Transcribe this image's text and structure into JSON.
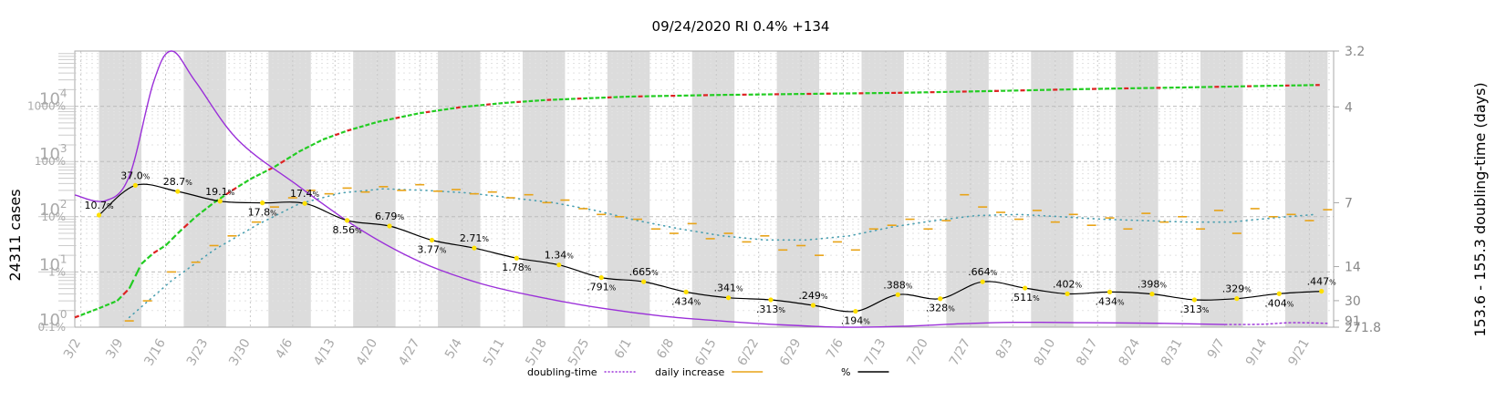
{
  "chart_data": {
    "type": "line",
    "title": "09/24/2020 RI 0.4% +134",
    "ylabel_left": "24311 cases",
    "ylabel_right": "153.6 - 155.3 doubling-time (days)",
    "x_tick_labels": [
      "3/2",
      "3/9",
      "3/16",
      "3/23",
      "3/30",
      "4/6",
      "4/13",
      "4/20",
      "4/27",
      "5/4",
      "5/11",
      "5/18",
      "5/25",
      "6/1",
      "6/8",
      "6/15",
      "6/22",
      "6/29",
      "7/6",
      "7/13",
      "7/20",
      "7/27",
      "8/3",
      "8/10",
      "8/17",
      "8/24",
      "8/31",
      "9/7",
      "9/14",
      "9/21"
    ],
    "x_start_date": "2020-03-01",
    "x_end_date": "2020-09-25",
    "cases_axis": {
      "scale": "log",
      "ylim": [
        1,
        100000
      ],
      "ticks": [
        {
          "base": "10",
          "exp": "0"
        },
        {
          "base": "10",
          "exp": "1"
        },
        {
          "base": "10",
          "exp": "2"
        },
        {
          "base": "10",
          "exp": "3"
        },
        {
          "base": "10",
          "exp": "4"
        }
      ]
    },
    "percent_axis": {
      "scale": "log",
      "ylim": [
        0.1,
        10000
      ],
      "ticks": [
        "0.1%",
        "1%",
        "10%",
        "100%",
        "1000%"
      ]
    },
    "doubling_axis": {
      "scale": "reciprocal",
      "ylim": [
        271.8,
        3.2
      ],
      "ticks": [
        "3.2",
        "4",
        "7",
        "14",
        "30",
        "91",
        "271.8"
      ]
    },
    "weekend_shading": true,
    "grid": true,
    "legend": {
      "position": "bottom",
      "entries": [
        {
          "label": "doubling-time",
          "color": "#9b30d9",
          "style": "dotted"
        },
        {
          "label": "daily increase",
          "color": "#e8a317",
          "style": "solid"
        },
        {
          "label": "%",
          "color": "#000000",
          "style": "solid"
        }
      ]
    },
    "series": [
      {
        "name": "%",
        "color": "#000000",
        "axis": "percent",
        "points": [
          {
            "x": "2020-03-05",
            "y": 10.7,
            "label": "10.7"
          },
          {
            "x": "2020-03-11",
            "y": 37.0,
            "label": "37.0"
          },
          {
            "x": "2020-03-18",
            "y": 28.7,
            "label": "28.7"
          },
          {
            "x": "2020-03-25",
            "y": 19.1,
            "label": "19.1"
          },
          {
            "x": "2020-04-01",
            "y": 17.8,
            "label": "17.8"
          },
          {
            "x": "2020-04-08",
            "y": 17.4,
            "label": "17.4"
          },
          {
            "x": "2020-04-15",
            "y": 8.56,
            "label": "8.56"
          },
          {
            "x": "2020-04-22",
            "y": 6.79,
            "label": "6.79"
          },
          {
            "x": "2020-04-29",
            "y": 3.77,
            "label": "3.77"
          },
          {
            "x": "2020-05-06",
            "y": 2.71,
            "label": "2.71"
          },
          {
            "x": "2020-05-13",
            "y": 1.78,
            "label": "1.78"
          },
          {
            "x": "2020-05-20",
            "y": 1.34,
            "label": "1.34"
          },
          {
            "x": "2020-05-27",
            "y": 0.791,
            "label": ".791"
          },
          {
            "x": "2020-06-03",
            "y": 0.665,
            "label": ".665"
          },
          {
            "x": "2020-06-10",
            "y": 0.434,
            "label": ".434"
          },
          {
            "x": "2020-06-17",
            "y": 0.341,
            "label": ".341"
          },
          {
            "x": "2020-06-24",
            "y": 0.313,
            "label": ".313"
          },
          {
            "x": "2020-07-01",
            "y": 0.249,
            "label": ".249"
          },
          {
            "x": "2020-07-08",
            "y": 0.194,
            "label": ".194"
          },
          {
            "x": "2020-07-15",
            "y": 0.388,
            "label": ".388"
          },
          {
            "x": "2020-07-22",
            "y": 0.328,
            "label": ".328"
          },
          {
            "x": "2020-07-29",
            "y": 0.664,
            "label": ".664"
          },
          {
            "x": "2020-08-05",
            "y": 0.511,
            "label": ".511"
          },
          {
            "x": "2020-08-12",
            "y": 0.402,
            "label": ".402"
          },
          {
            "x": "2020-08-19",
            "y": 0.434,
            "label": ".434"
          },
          {
            "x": "2020-08-26",
            "y": 0.398,
            "label": ".398"
          },
          {
            "x": "2020-09-02",
            "y": 0.313,
            "label": ".313"
          },
          {
            "x": "2020-09-09",
            "y": 0.329,
            "label": ".329"
          },
          {
            "x": "2020-09-16",
            "y": 0.404,
            "label": ".404"
          },
          {
            "x": "2020-09-23",
            "y": 0.447,
            "label": ".447"
          }
        ]
      },
      {
        "name": "cases",
        "color": "#22cc22",
        "color_alt": "#dd2222",
        "axis": "cases",
        "points": [
          {
            "x": "2020-03-01",
            "y": 1.5
          },
          {
            "x": "2020-03-05",
            "y": 2.2
          },
          {
            "x": "2020-03-08",
            "y": 3
          },
          {
            "x": "2020-03-10",
            "y": 5
          },
          {
            "x": "2020-03-12",
            "y": 14
          },
          {
            "x": "2020-03-14",
            "y": 22
          },
          {
            "x": "2020-03-16",
            "y": 30
          },
          {
            "x": "2020-03-18",
            "y": 50
          },
          {
            "x": "2020-03-21",
            "y": 100
          },
          {
            "x": "2020-03-24",
            "y": 180
          },
          {
            "x": "2020-03-27",
            "y": 300
          },
          {
            "x": "2020-03-30",
            "y": 480
          },
          {
            "x": "2020-04-03",
            "y": 800
          },
          {
            "x": "2020-04-07",
            "y": 1500
          },
          {
            "x": "2020-04-11",
            "y": 2500
          },
          {
            "x": "2020-04-15",
            "y": 3600
          },
          {
            "x": "2020-04-20",
            "y": 5200
          },
          {
            "x": "2020-04-27",
            "y": 7500
          },
          {
            "x": "2020-05-04",
            "y": 9700
          },
          {
            "x": "2020-05-11",
            "y": 11500
          },
          {
            "x": "2020-05-18",
            "y": 13000
          },
          {
            "x": "2020-05-25",
            "y": 14000
          },
          {
            "x": "2020-06-01",
            "y": 15000
          },
          {
            "x": "2020-06-15",
            "y": 16000
          },
          {
            "x": "2020-07-01",
            "y": 16800
          },
          {
            "x": "2020-07-15",
            "y": 17500
          },
          {
            "x": "2020-08-01",
            "y": 19000
          },
          {
            "x": "2020-08-15",
            "y": 20500
          },
          {
            "x": "2020-09-01",
            "y": 22000
          },
          {
            "x": "2020-09-15",
            "y": 23500
          },
          {
            "x": "2020-09-23",
            "y": 24311
          }
        ]
      },
      {
        "name": "doubling-time",
        "color": "#9b30d9",
        "axis": "doubling",
        "points": [
          {
            "x": "2020-03-01",
            "y": 6.6
          },
          {
            "x": "2020-03-06",
            "y": 6.9
          },
          {
            "x": "2020-03-10",
            "y": 5.8
          },
          {
            "x": "2020-03-14",
            "y": 3.6
          },
          {
            "x": "2020-03-17",
            "y": 3.2
          },
          {
            "x": "2020-03-21",
            "y": 3.6
          },
          {
            "x": "2020-03-28",
            "y": 4.7
          },
          {
            "x": "2020-04-07",
            "y": 6.2
          },
          {
            "x": "2020-04-17",
            "y": 8.8
          },
          {
            "x": "2020-04-27",
            "y": 13
          },
          {
            "x": "2020-05-07",
            "y": 19
          },
          {
            "x": "2020-05-17",
            "y": 27
          },
          {
            "x": "2020-05-27",
            "y": 40
          },
          {
            "x": "2020-06-06",
            "y": 62
          },
          {
            "x": "2020-06-16",
            "y": 95
          },
          {
            "x": "2020-06-26",
            "y": 160
          },
          {
            "x": "2020-07-06",
            "y": 270
          },
          {
            "x": "2020-07-16",
            "y": 210
          },
          {
            "x": "2020-07-26",
            "y": 130
          },
          {
            "x": "2020-08-03",
            "y": 110
          },
          {
            "x": "2020-08-15",
            "y": 115
          },
          {
            "x": "2020-08-28",
            "y": 125
          },
          {
            "x": "2020-09-07",
            "y": 150
          },
          {
            "x": "2020-09-13",
            "y": 145
          },
          {
            "x": "2020-09-18",
            "y": 115
          },
          {
            "x": "2020-09-24",
            "y": 125
          }
        ]
      },
      {
        "name": "daily increase",
        "color": "#e8a317",
        "axis": "cases",
        "points": [
          {
            "x": "2020-03-10",
            "y": 1.3
          },
          {
            "x": "2020-03-13",
            "y": 3
          },
          {
            "x": "2020-03-17",
            "y": 10
          },
          {
            "x": "2020-03-21",
            "y": 15
          },
          {
            "x": "2020-03-24",
            "y": 30
          },
          {
            "x": "2020-03-27",
            "y": 45
          },
          {
            "x": "2020-03-31",
            "y": 80
          },
          {
            "x": "2020-04-03",
            "y": 150
          },
          {
            "x": "2020-04-06",
            "y": 220
          },
          {
            "x": "2020-04-09",
            "y": 300
          },
          {
            "x": "2020-04-12",
            "y": 260
          },
          {
            "x": "2020-04-15",
            "y": 330
          },
          {
            "x": "2020-04-18",
            "y": 280
          },
          {
            "x": "2020-04-21",
            "y": 350
          },
          {
            "x": "2020-04-24",
            "y": 300
          },
          {
            "x": "2020-04-27",
            "y": 380
          },
          {
            "x": "2020-04-30",
            "y": 290
          },
          {
            "x": "2020-05-03",
            "y": 310
          },
          {
            "x": "2020-05-06",
            "y": 260
          },
          {
            "x": "2020-05-09",
            "y": 280
          },
          {
            "x": "2020-05-12",
            "y": 220
          },
          {
            "x": "2020-05-15",
            "y": 250
          },
          {
            "x": "2020-05-18",
            "y": 180
          },
          {
            "x": "2020-05-21",
            "y": 200
          },
          {
            "x": "2020-05-24",
            "y": 140
          },
          {
            "x": "2020-05-27",
            "y": 110
          },
          {
            "x": "2020-05-30",
            "y": 100
          },
          {
            "x": "2020-06-02",
            "y": 90
          },
          {
            "x": "2020-06-05",
            "y": 60
          },
          {
            "x": "2020-06-08",
            "y": 50
          },
          {
            "x": "2020-06-11",
            "y": 75
          },
          {
            "x": "2020-06-14",
            "y": 40
          },
          {
            "x": "2020-06-17",
            "y": 50
          },
          {
            "x": "2020-06-20",
            "y": 35
          },
          {
            "x": "2020-06-23",
            "y": 45
          },
          {
            "x": "2020-06-26",
            "y": 25
          },
          {
            "x": "2020-06-29",
            "y": 30
          },
          {
            "x": "2020-07-02",
            "y": 20
          },
          {
            "x": "2020-07-05",
            "y": 35
          },
          {
            "x": "2020-07-08",
            "y": 25
          },
          {
            "x": "2020-07-11",
            "y": 60
          },
          {
            "x": "2020-07-14",
            "y": 70
          },
          {
            "x": "2020-07-17",
            "y": 90
          },
          {
            "x": "2020-07-20",
            "y": 60
          },
          {
            "x": "2020-07-23",
            "y": 85
          },
          {
            "x": "2020-07-26",
            "y": 250
          },
          {
            "x": "2020-07-29",
            "y": 150
          },
          {
            "x": "2020-08-01",
            "y": 120
          },
          {
            "x": "2020-08-04",
            "y": 90
          },
          {
            "x": "2020-08-07",
            "y": 130
          },
          {
            "x": "2020-08-10",
            "y": 80
          },
          {
            "x": "2020-08-13",
            "y": 110
          },
          {
            "x": "2020-08-16",
            "y": 70
          },
          {
            "x": "2020-08-19",
            "y": 95
          },
          {
            "x": "2020-08-22",
            "y": 60
          },
          {
            "x": "2020-08-25",
            "y": 115
          },
          {
            "x": "2020-08-28",
            "y": 80
          },
          {
            "x": "2020-08-31",
            "y": 100
          },
          {
            "x": "2020-09-03",
            "y": 60
          },
          {
            "x": "2020-09-06",
            "y": 130
          },
          {
            "x": "2020-09-09",
            "y": 50
          },
          {
            "x": "2020-09-12",
            "y": 140
          },
          {
            "x": "2020-09-15",
            "y": 100
          },
          {
            "x": "2020-09-18",
            "y": 110
          },
          {
            "x": "2020-09-21",
            "y": 85
          },
          {
            "x": "2020-09-24",
            "y": 134
          }
        ]
      },
      {
        "name": "7-day average",
        "color": "#4a9fb0",
        "axis": "cases",
        "points": [
          {
            "x": "2020-03-10",
            "y": 1.5
          },
          {
            "x": "2020-03-17",
            "y": 7
          },
          {
            "x": "2020-03-24",
            "y": 25
          },
          {
            "x": "2020-03-31",
            "y": 70
          },
          {
            "x": "2020-04-07",
            "y": 170
          },
          {
            "x": "2020-04-14",
            "y": 270
          },
          {
            "x": "2020-04-21",
            "y": 320
          },
          {
            "x": "2020-04-28",
            "y": 300
          },
          {
            "x": "2020-05-05",
            "y": 270
          },
          {
            "x": "2020-05-12",
            "y": 220
          },
          {
            "x": "2020-05-19",
            "y": 180
          },
          {
            "x": "2020-05-26",
            "y": 130
          },
          {
            "x": "2020-06-02",
            "y": 85
          },
          {
            "x": "2020-06-09",
            "y": 60
          },
          {
            "x": "2020-06-16",
            "y": 45
          },
          {
            "x": "2020-06-23",
            "y": 38
          },
          {
            "x": "2020-06-30",
            "y": 38
          },
          {
            "x": "2020-07-07",
            "y": 45
          },
          {
            "x": "2020-07-14",
            "y": 65
          },
          {
            "x": "2020-07-21",
            "y": 85
          },
          {
            "x": "2020-07-28",
            "y": 105
          },
          {
            "x": "2020-08-04",
            "y": 110
          },
          {
            "x": "2020-08-11",
            "y": 100
          },
          {
            "x": "2020-08-18",
            "y": 90
          },
          {
            "x": "2020-08-25",
            "y": 85
          },
          {
            "x": "2020-09-01",
            "y": 80
          },
          {
            "x": "2020-09-08",
            "y": 80
          },
          {
            "x": "2020-09-15",
            "y": 95
          },
          {
            "x": "2020-09-22",
            "y": 110
          }
        ]
      }
    ]
  }
}
